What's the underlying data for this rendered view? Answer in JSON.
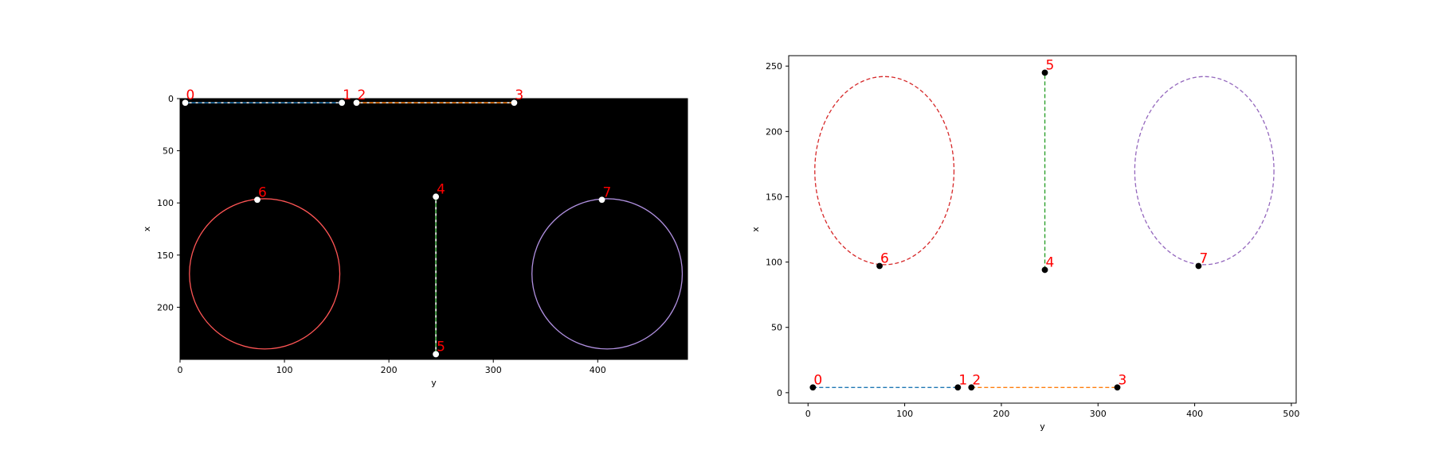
{
  "chart_data": [
    {
      "type": "image-overlay",
      "title": "",
      "xlabel": "y",
      "ylabel": "x",
      "xlim": [
        0,
        486
      ],
      "ylim": [
        250,
        0
      ],
      "x_ticks": [
        0,
        100,
        200,
        300,
        400
      ],
      "y_ticks": [
        0,
        50,
        100,
        150,
        200
      ],
      "background": "#000000",
      "series": [
        {
          "color": "#1f77b4",
          "x": [
            5,
            155
          ],
          "y": [
            4,
            4
          ],
          "style": "dashed-on-white"
        },
        {
          "color": "#ff7f0e",
          "x": [
            169,
            320
          ],
          "y": [
            4,
            4
          ],
          "style": "dashed-on-white"
        },
        {
          "color": "#2ca02c",
          "x": [
            245,
            245
          ],
          "y": [
            94,
            245
          ],
          "style": "dashed-on-white"
        }
      ],
      "circles": [
        {
          "color": "#ff5555",
          "cx": 81,
          "cy": 168,
          "r": 72
        },
        {
          "color": "#b090e0",
          "cx": 409,
          "cy": 168,
          "r": 72
        }
      ],
      "points": [
        {
          "label": "0",
          "x": 5,
          "y": 4
        },
        {
          "label": "1",
          "x": 155,
          "y": 4
        },
        {
          "label": "2",
          "x": 169,
          "y": 4
        },
        {
          "label": "3",
          "x": 320,
          "y": 4
        },
        {
          "label": "4",
          "x": 245,
          "y": 94
        },
        {
          "label": "5",
          "x": 245,
          "y": 245
        },
        {
          "label": "6",
          "x": 74,
          "y": 97
        },
        {
          "label": "7",
          "x": 404,
          "y": 97
        }
      ],
      "point_color": "#ffffff"
    },
    {
      "type": "line",
      "title": "",
      "xlabel": "y",
      "ylabel": "x",
      "xlim": [
        -20,
        505
      ],
      "ylim": [
        -8,
        258
      ],
      "x_ticks": [
        0,
        100,
        200,
        300,
        400,
        500
      ],
      "y_ticks": [
        0,
        50,
        100,
        150,
        200,
        250
      ],
      "series": [
        {
          "color": "#1f77b4",
          "x": [
            5,
            155
          ],
          "y": [
            4,
            4
          ]
        },
        {
          "color": "#ff7f0e",
          "x": [
            169,
            320
          ],
          "y": [
            4,
            4
          ]
        },
        {
          "color": "#2ca02c",
          "x": [
            245,
            245
          ],
          "y": [
            94,
            245
          ]
        }
      ],
      "ellipses": [
        {
          "color": "#d62728",
          "cx": 79,
          "cy": 170,
          "rx": 72,
          "ry": 72
        },
        {
          "color": "#9467bd",
          "cx": 410,
          "cy": 170,
          "rx": 72,
          "ry": 72
        }
      ],
      "points": [
        {
          "label": "0",
          "x": 5,
          "y": 4
        },
        {
          "label": "1",
          "x": 155,
          "y": 4
        },
        {
          "label": "2",
          "x": 169,
          "y": 4
        },
        {
          "label": "3",
          "x": 320,
          "y": 4
        },
        {
          "label": "4",
          "x": 245,
          "y": 94
        },
        {
          "label": "5",
          "x": 245,
          "y": 245
        },
        {
          "label": "6",
          "x": 74,
          "y": 97
        },
        {
          "label": "7",
          "x": 404,
          "y": 97
        }
      ],
      "point_color": "#000000"
    }
  ]
}
